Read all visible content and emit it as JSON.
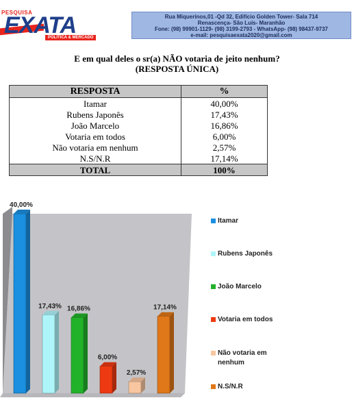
{
  "header": {
    "logo": {
      "top_label": "PESQUISA",
      "word": "EXATA",
      "sub": "POLÍTICA & MERCADO"
    },
    "contact_lines": [
      "Rua Miquerinos,01 -Qd 32,  Edifício Golden Tower- Sala 714",
      "Renascença- São Luís- Maranhão",
      "Fone: (98) 99901-1129- (98) 3199-2793 - WhatsApp- (98) 98437-9737",
      "e-mail: pesquisaexata2020@gmail.com"
    ]
  },
  "question": {
    "line1": "E em qual deles o sr(a) NÃO votaria de jeito nenhum?",
    "line2": "(RESPOSTA ÚNICA)"
  },
  "table": {
    "headers": [
      "RESPOSTA",
      "%"
    ],
    "rows": [
      [
        "Itamar",
        "40,00%"
      ],
      [
        "Rubens Japonês",
        "17,43%"
      ],
      [
        "João Marcelo",
        "16,86%"
      ],
      [
        "Votaria em todos",
        "6,00%"
      ],
      [
        "Não votaria em nenhum",
        "2,57%"
      ],
      [
        "N.S/N.R",
        "17,14%"
      ]
    ],
    "total": [
      "TOTAL",
      "100%"
    ]
  },
  "chart_data": {
    "type": "bar",
    "categories": [
      "Itamar",
      "Rubens Japonês",
      "João Marcelo",
      "Votaria em todos",
      "Não votaria em nenhum",
      "N.S/N.R"
    ],
    "values": [
      40.0,
      17.43,
      16.86,
      6.0,
      2.57,
      17.14
    ],
    "data_labels": [
      "40,00%",
      "17,43%",
      "16,86%",
      "6,00%",
      "2,57%",
      "17,14%"
    ],
    "colors": [
      "#1b8fe0",
      "#aef5fa",
      "#22b22a",
      "#ee3a12",
      "#f8c6a0",
      "#e07718"
    ],
    "wall_color": "#c4c4c8",
    "legend_position": "right",
    "title": "",
    "xlabel": "",
    "ylabel": ""
  }
}
